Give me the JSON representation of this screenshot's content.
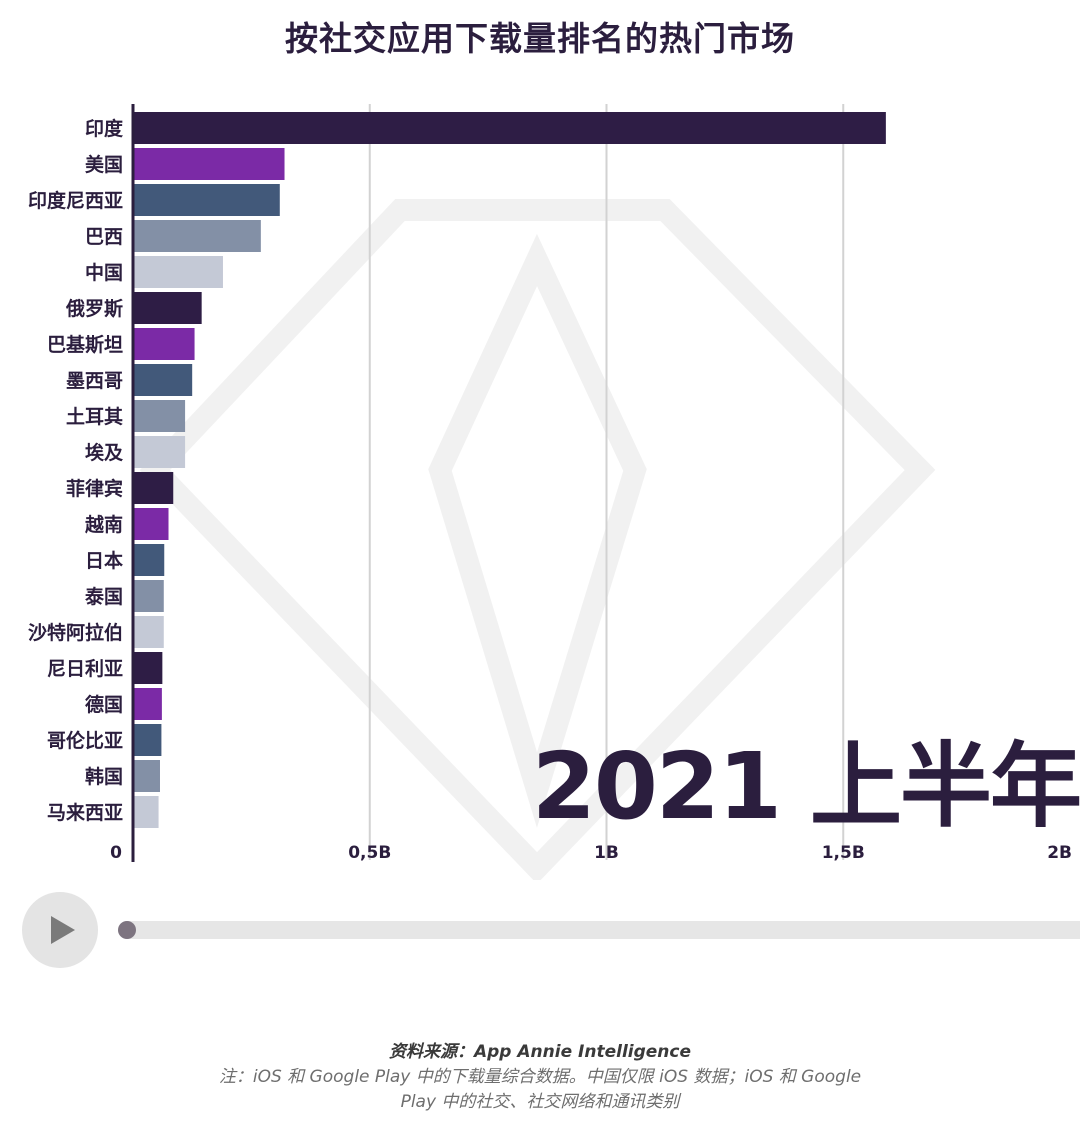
{
  "title": "按社交应用下载量排名的热门市场",
  "period_label": "2021 上半年",
  "source": "资料来源：App Annie Intelligence",
  "note_line1": "注：iOS 和 Google Play 中的下载量综合数据。中国仅限 iOS 数据；iOS 和 Google",
  "note_line2": "Play 中的社交、社交网络和通讯类别",
  "colors": {
    "cycle": [
      "#2e1d45",
      "#7b2aa6",
      "#42597a",
      "#8390a6",
      "#c4c9d6"
    ],
    "gridline": "#d2d2d2",
    "axis": "#2b1e3e",
    "watermark": "#f1f1f1"
  },
  "chart_data": {
    "type": "bar",
    "orientation": "horizontal",
    "categories": [
      "印度",
      "美国",
      "印度尼西亚",
      "巴西",
      "中国",
      "俄罗斯",
      "巴基斯坦",
      "墨西哥",
      "土耳其",
      "埃及",
      "菲律宾",
      "越南",
      "日本",
      "泰国",
      "沙特阿拉伯",
      "尼日利亚",
      "德国",
      "哥伦比亚",
      "韩国",
      "马来西亚"
    ],
    "values": [
      1.59,
      0.32,
      0.31,
      0.27,
      0.19,
      0.145,
      0.13,
      0.125,
      0.11,
      0.11,
      0.085,
      0.075,
      0.066,
      0.065,
      0.065,
      0.062,
      0.061,
      0.06,
      0.057,
      0.054
    ],
    "xlim": [
      0,
      2
    ],
    "x_ticks": [
      0,
      0.5,
      1,
      1.5,
      2
    ],
    "x_tick_labels": [
      "0",
      "0,5B",
      "1B",
      "1,5B",
      "2B"
    ],
    "grid": true
  }
}
